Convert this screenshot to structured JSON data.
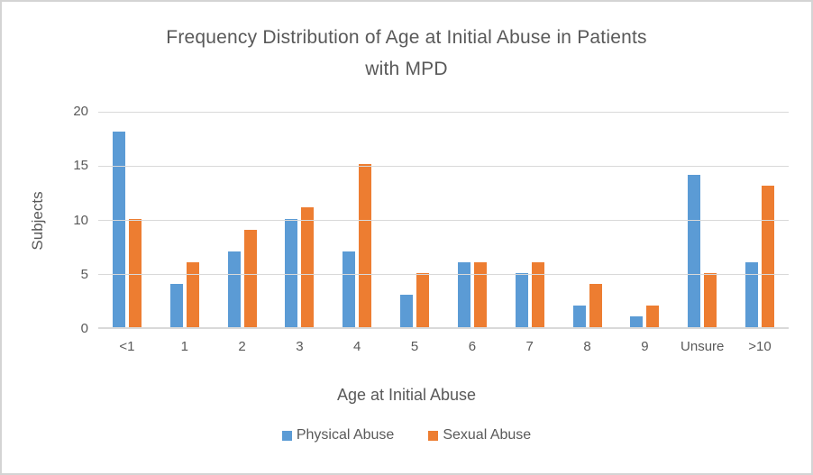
{
  "chart_data": {
    "type": "bar",
    "title": "Frequency Distribution of Age at Initial Abuse in Patients with MPD",
    "title_lines": [
      "Frequency Distribution of Age at Initial Abuse in Patients",
      "with MPD"
    ],
    "categories": [
      "<1",
      "1",
      "2",
      "3",
      "4",
      "5",
      "6",
      "7",
      "8",
      "9",
      "Unsure",
      ">10"
    ],
    "series": [
      {
        "name": "Physical Abuse",
        "color": "#5B9BD5",
        "values": [
          18,
          4,
          7,
          10,
          7,
          3,
          6,
          5,
          2,
          1,
          14,
          6
        ]
      },
      {
        "name": "Sexual Abuse",
        "color": "#ED7D31",
        "values": [
          10,
          6,
          9,
          11,
          15,
          5,
          6,
          6,
          4,
          2,
          5,
          13
        ]
      }
    ],
    "xlabel": "Age at Initial Abuse",
    "ylabel": "Subjects",
    "ylim": [
      0,
      20
    ],
    "yticks": [
      0,
      5,
      10,
      15,
      20
    ],
    "grid": true,
    "legend_position": "bottom",
    "text_color": "#595959",
    "gridline_color": "#d9d9d9"
  }
}
